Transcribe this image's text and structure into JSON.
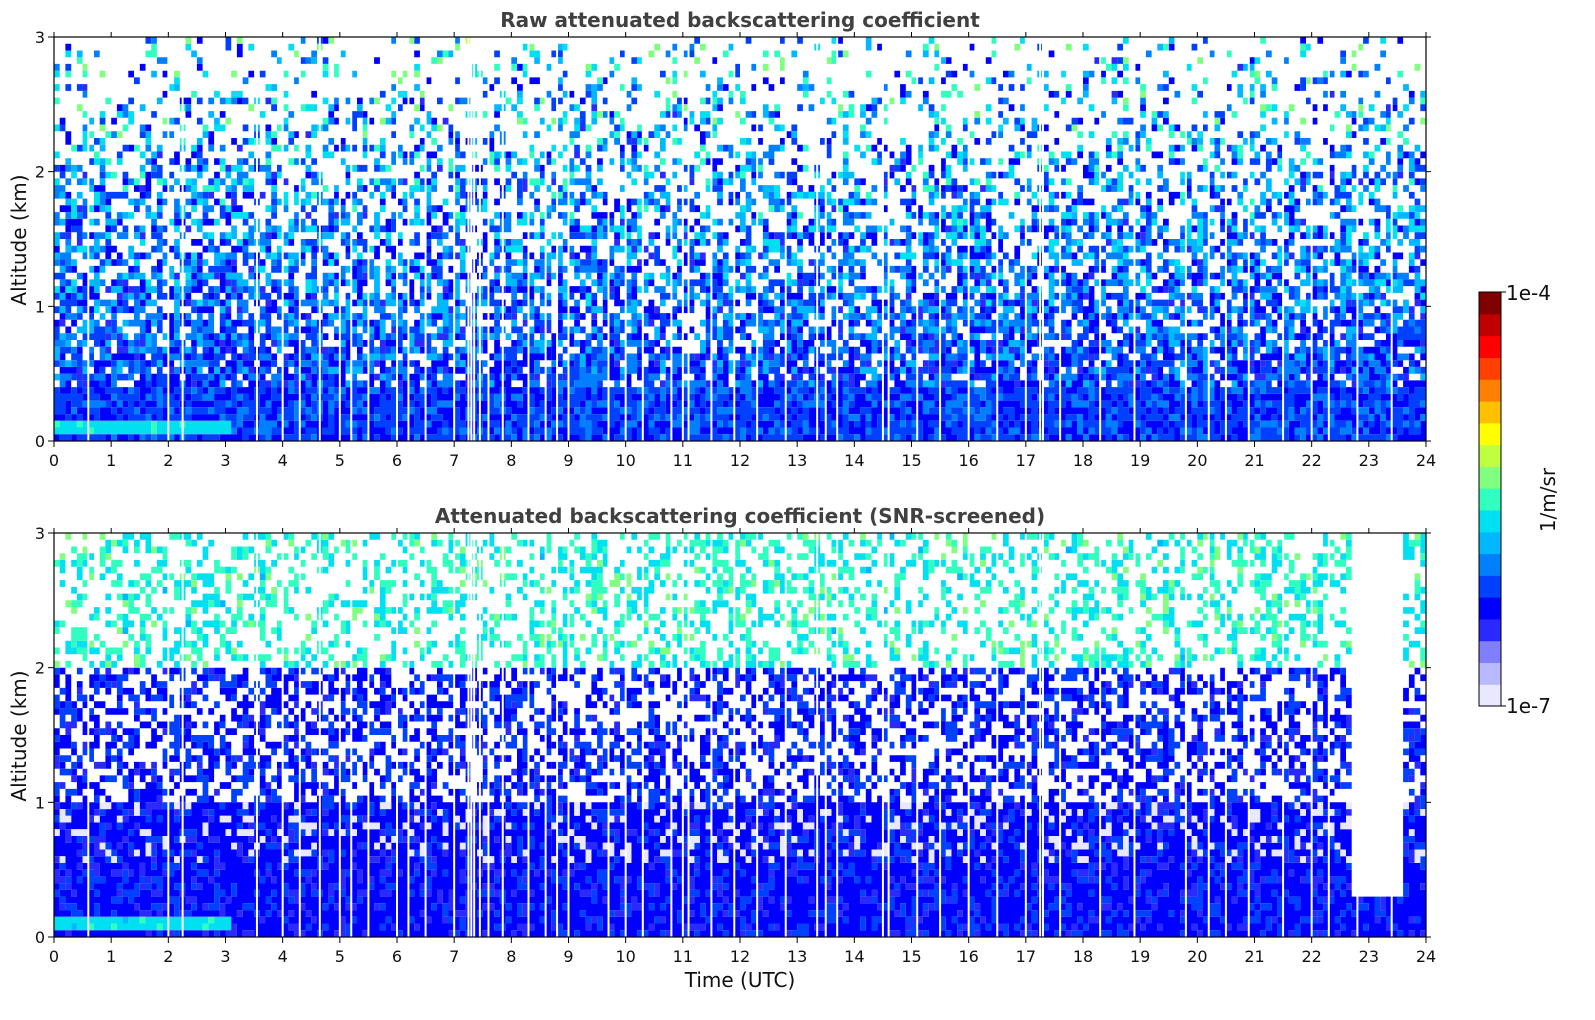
{
  "chart_data": [
    {
      "type": "heatmap",
      "title": "Raw attenuated backscattering coefficient",
      "xlabel": "",
      "ylabel": "Altitude (km)",
      "x_ticks": [
        "0",
        "1",
        "2",
        "3",
        "4",
        "5",
        "6",
        "7",
        "8",
        "9",
        "10",
        "11",
        "12",
        "13",
        "14",
        "15",
        "16",
        "17",
        "18",
        "19",
        "20",
        "21",
        "22",
        "23",
        "24"
      ],
      "y_ticks": [
        "0",
        "1",
        "2",
        "3"
      ],
      "xlim": [
        0,
        24
      ],
      "ylim": [
        0,
        3
      ],
      "x_units": "hours UTC",
      "y_units": "km",
      "grid": false,
      "colorscale": "jet",
      "features": {
        "surface_layer_top_km": 0.4,
        "bright_layer_near_ground": {
          "start_h": 0,
          "end_h": 3,
          "altitude_km": 0.08
        },
        "data_gaps_h": [
          0.6,
          2.0,
          2.25,
          3.55,
          4.0,
          4.3,
          4.65,
          5.0,
          5.2,
          5.5,
          6.0,
          6.2,
          6.5,
          7.0,
          7.25,
          7.3,
          7.35,
          7.45,
          7.6,
          7.85,
          8.3,
          8.6,
          8.8,
          9.0,
          9.7,
          10.0,
          10.3,
          10.8,
          11.0,
          11.1,
          11.5,
          11.9,
          12.3,
          12.8,
          13.35,
          13.5,
          13.7,
          14.5,
          14.6,
          15.1,
          15.5,
          16.0,
          16.5,
          17.0,
          17.25,
          17.3,
          17.6,
          18.3,
          18.9,
          19.8,
          20.2,
          20.5,
          20.9,
          21.5,
          22.0,
          22.3,
          22.8,
          23.4
        ]
      }
    },
    {
      "type": "heatmap",
      "title": "Attenuated backscattering coefficient (SNR-screened)",
      "xlabel": "Time (UTC)",
      "ylabel": "Altitude (km)",
      "x_ticks": [
        "0",
        "1",
        "2",
        "3",
        "4",
        "5",
        "6",
        "7",
        "8",
        "9",
        "10",
        "11",
        "12",
        "13",
        "14",
        "15",
        "16",
        "17",
        "18",
        "19",
        "20",
        "21",
        "22",
        "23",
        "24"
      ],
      "y_ticks": [
        "0",
        "1",
        "2",
        "3"
      ],
      "xlim": [
        0,
        24
      ],
      "ylim": [
        0,
        3
      ],
      "x_units": "hours UTC",
      "y_units": "km",
      "grid": false,
      "colorscale": "jet",
      "features": {
        "dense_layer_top_km": 1.0,
        "screened_noise_top_km": 2.0,
        "white_screened_band_h": [
          22.7,
          23.5
        ],
        "white_screened_band_alt_km": [
          0.28,
          3.0
        ],
        "bright_layer_near_ground": {
          "start_h": 0,
          "end_h": 3,
          "altitude_km": 0.08
        },
        "data_gaps_h": [
          0.6,
          2.0,
          2.25,
          3.55,
          4.0,
          4.3,
          4.65,
          5.0,
          5.2,
          5.5,
          6.0,
          6.2,
          6.5,
          7.0,
          7.25,
          7.3,
          7.35,
          7.45,
          7.6,
          7.85,
          8.3,
          8.6,
          8.8,
          9.0,
          9.7,
          10.0,
          10.3,
          10.8,
          11.0,
          11.1,
          11.5,
          11.9,
          12.3,
          12.8,
          13.35,
          13.5,
          13.7,
          14.5,
          14.6,
          15.1,
          15.5,
          16.0,
          16.5,
          17.0,
          17.25,
          17.3,
          17.6,
          18.3,
          18.9,
          19.8,
          20.2,
          20.5,
          20.9,
          21.5,
          22.0,
          22.3,
          22.8,
          23.4
        ]
      }
    }
  ],
  "colorbar": {
    "label": "1/m/sr",
    "min_label": "1e-7",
    "max_label": "1e-4",
    "scale": "log",
    "vmin": 1e-07,
    "vmax": 0.0001,
    "colors": [
      "#e8e8ff",
      "#b9b9ff",
      "#8080ff",
      "#2a2aff",
      "#0000ff",
      "#0040ff",
      "#0080ff",
      "#00b8ff",
      "#00e0f0",
      "#30ffc0",
      "#80ff80",
      "#c0ff40",
      "#ffff00",
      "#ffc000",
      "#ff8000",
      "#ff4000",
      "#ff0000",
      "#c00000",
      "#800000"
    ]
  }
}
